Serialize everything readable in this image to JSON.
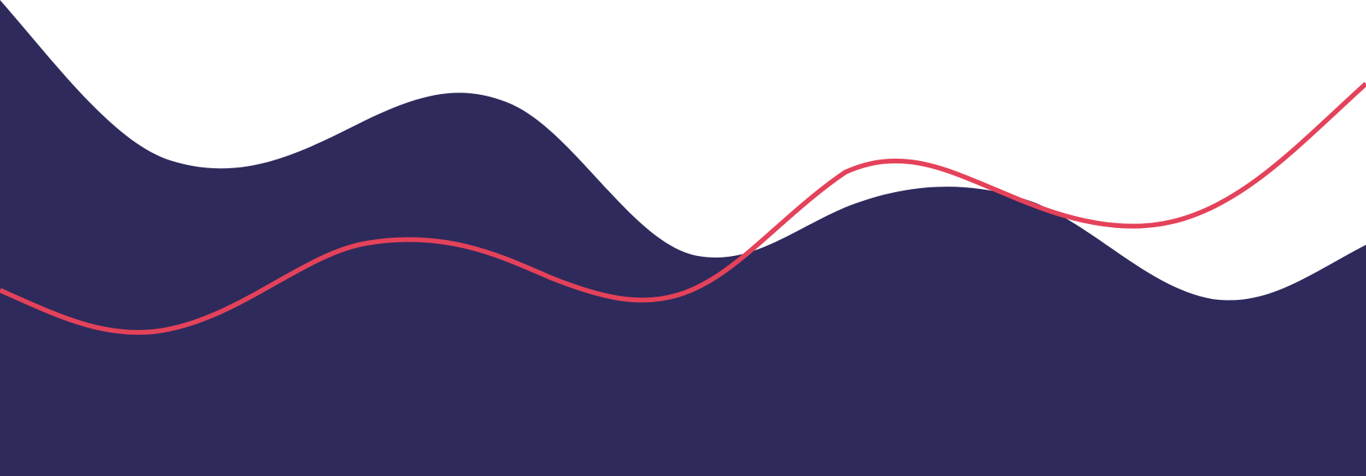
{
  "colors": {
    "background": "#ffffff",
    "wave_fill": "#2e2a5c",
    "line_stroke": "#e4425a"
  },
  "elements": {
    "wave": "navy-wave-shape",
    "line": "red-wavy-line"
  }
}
